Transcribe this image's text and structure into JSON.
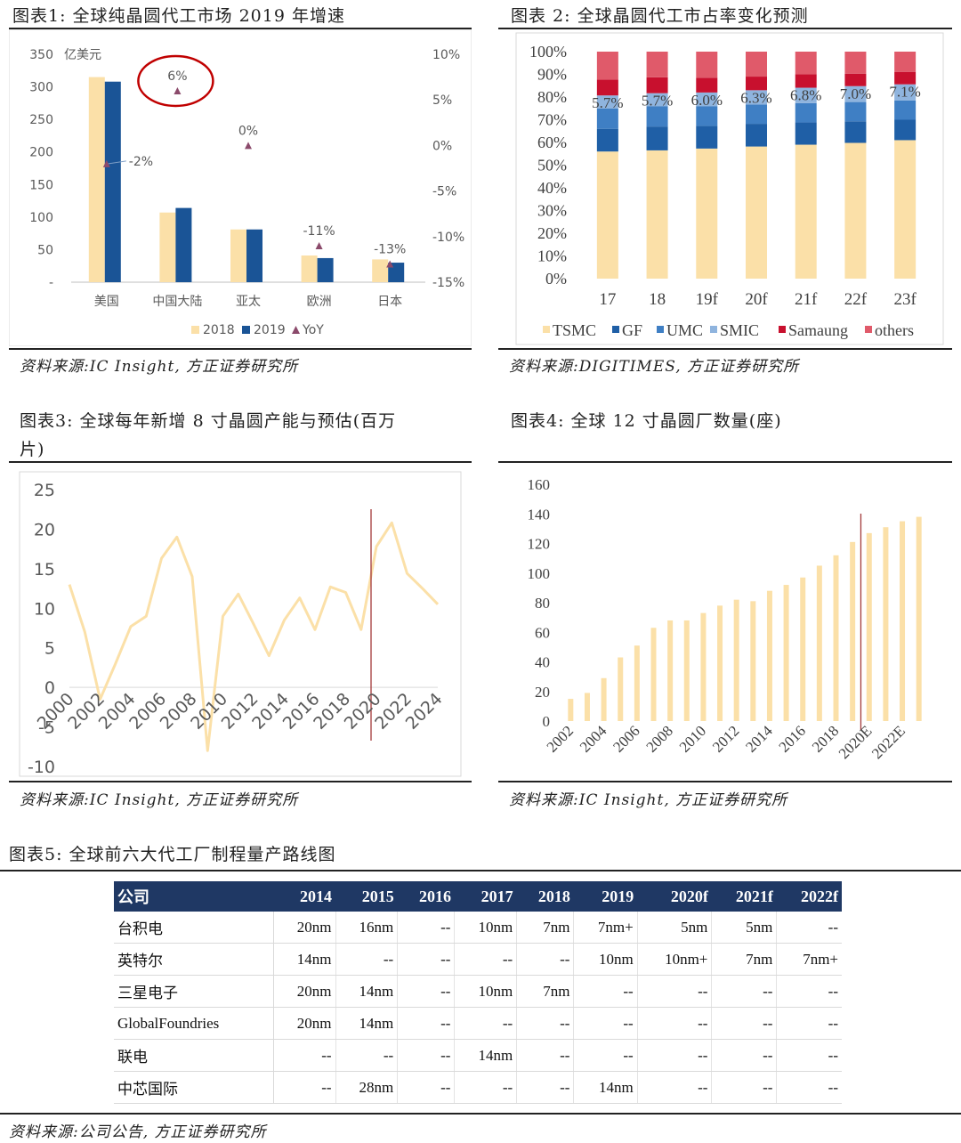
{
  "fig1": {
    "title": "图表1:  全球纯晶圆代工市场 2019 年增速",
    "source": "资料来源:IC Insight, 方正证券研究所",
    "unit_label": "亿美元",
    "chart_data": {
      "type": "bar",
      "categories": [
        "美国",
        "中国大陆",
        "亚太",
        "欧洲",
        "日本"
      ],
      "series": [
        {
          "name": "2018",
          "values": [
            315,
            107,
            81,
            41,
            35
          ],
          "color": "#fbe0a8"
        },
        {
          "name": "2019",
          "values": [
            308,
            114,
            81,
            37,
            30
          ],
          "color": "#1a5496"
        }
      ],
      "line_series": {
        "name": "YoY",
        "values": [
          -2,
          6,
          0,
          -11,
          -13
        ],
        "labels": [
          "-2%",
          "6%",
          "0%",
          "-11%",
          "-13%"
        ],
        "color": "#8b4a6b"
      },
      "ylim": [
        0,
        350
      ],
      "y_ticks": [
        "-",
        "50",
        "100",
        "150",
        "200",
        "250",
        "300",
        "350"
      ],
      "y2lim": [
        -15,
        10
      ],
      "y2_ticks": [
        "-15%",
        "-10%",
        "-5%",
        "0%",
        "5%",
        "10%"
      ],
      "highlight_color": "#c00000"
    }
  },
  "fig2": {
    "title": "图表 2:  全球晶圆代工市占率变化预测",
    "source": "资料来源:DIGITIMES, 方正证券研究所",
    "chart_data": {
      "type": "bar",
      "stacked": true,
      "categories": [
        "17",
        "18",
        "19f",
        "20f",
        "21f",
        "22f",
        "23f"
      ],
      "series": [
        {
          "name": "TSMC",
          "values": [
            56,
            56.5,
            57.3,
            58.2,
            59,
            59.8,
            61
          ],
          "color": "#fbe0a8"
        },
        {
          "name": "GF",
          "values": [
            10,
            10.5,
            10,
            10,
            9.8,
            9.5,
            9
          ],
          "color": "#1f5fa6"
        },
        {
          "name": "UMC",
          "values": [
            9,
            9,
            8.7,
            8.5,
            8.5,
            8.5,
            8.5
          ],
          "color": "#3f7fc4"
        },
        {
          "name": "SMIC",
          "values": [
            5.7,
            5.7,
            6.0,
            6.3,
            6.8,
            7.0,
            7.1
          ],
          "color": "#8fb4de"
        },
        {
          "name": "Samaung",
          "values": [
            7,
            7,
            6.5,
            6,
            6,
            5.5,
            5.5
          ],
          "color": "#c8102e"
        },
        {
          "name": "others",
          "values": [
            12.3,
            11.3,
            11.5,
            11,
            9.9,
            9.7,
            8.9
          ],
          "color": "#e05a6a"
        }
      ],
      "smic_labels": [
        "5.7%",
        "5.7%",
        "6.0%",
        "6.3%",
        "6.8%",
        "7.0%",
        "7.1%"
      ],
      "ylim": [
        0,
        100
      ],
      "y_ticks": [
        "0%",
        "10%",
        "20%",
        "30%",
        "40%",
        "50%",
        "60%",
        "70%",
        "80%",
        "90%",
        "100%"
      ]
    }
  },
  "fig3": {
    "title_line1": "图表3:  全球每年新增 8 寸晶圆产能与预估(百万",
    "title_line2": "片)",
    "source": "资料来源:IC Insight, 方正证券研究所",
    "chart_data": {
      "type": "line",
      "x": [
        2000,
        2001,
        2002,
        2003,
        2004,
        2005,
        2006,
        2007,
        2008,
        2009,
        2010,
        2011,
        2012,
        2013,
        2014,
        2015,
        2016,
        2017,
        2018,
        2019,
        2020,
        2021,
        2022,
        2023,
        2024
      ],
      "values": [
        13,
        7,
        -1.5,
        3,
        7.7,
        9,
        16.3,
        19,
        14,
        -8,
        9,
        11.8,
        8,
        4,
        8.5,
        11.3,
        7.3,
        12.7,
        12,
        7.3,
        17.8,
        20.8,
        14.4,
        12.5,
        10.5
      ],
      "x_tick_labels": [
        "2000",
        "2002",
        "2004",
        "2006",
        "2008",
        "2010",
        "2012",
        "2014",
        "2016",
        "2018",
        "2020",
        "2022",
        "2024"
      ],
      "y_ticks": [
        "-10",
        "-5",
        "0",
        "5",
        "10",
        "15",
        "20",
        "25"
      ],
      "ylim": [
        -10,
        25
      ],
      "marker_year": 2020,
      "line_color": "#fbe0a8",
      "marker_color": "#a33a3a"
    }
  },
  "fig4": {
    "title": "图表4:   全球 12 寸晶圆厂数量(座)",
    "source": "资料来源:IC Insight, 方正证券研究所",
    "chart_data": {
      "type": "bar",
      "categories": [
        "2002",
        "2003",
        "2004",
        "2005",
        "2006",
        "2007",
        "2008",
        "2009",
        "2010",
        "2011",
        "2012",
        "2013",
        "2014",
        "2015",
        "2016",
        "2017",
        "2018",
        "2019",
        "2020E",
        "2021E",
        "2022E",
        "2023E"
      ],
      "values": [
        15,
        19,
        29,
        43,
        51,
        63,
        68,
        68,
        73,
        78,
        82,
        81,
        88,
        92,
        97,
        105,
        112,
        121,
        127,
        131,
        135,
        138
      ],
      "x_tick_labels": [
        "2002",
        "2004",
        "2006",
        "2008",
        "2010",
        "2012",
        "2014",
        "2016",
        "2018",
        "2020E",
        "2022E"
      ],
      "y_ticks": [
        "0",
        "20",
        "40",
        "60",
        "80",
        "100",
        "120",
        "140",
        "160"
      ],
      "ylim": [
        0,
        160
      ],
      "marker_after": "2019",
      "bar_color": "#fbe0a8",
      "marker_color": "#a33a3a"
    }
  },
  "fig5": {
    "title": "图表5:   全球前六大代工厂制程量产路线图",
    "source": "资料来源:公司公告, 方正证券研究所",
    "chart_data": {
      "type": "table",
      "columns": [
        "公司",
        "2014",
        "2015",
        "2016",
        "2017",
        "2018",
        "2019",
        "2020f",
        "2021f",
        "2022f"
      ],
      "rows": [
        [
          "台积电",
          "20nm",
          "16nm",
          "--",
          "10nm",
          "7nm",
          "7nm+",
          "5nm",
          "5nm",
          "--"
        ],
        [
          "英特尔",
          "14nm",
          "--",
          "--",
          "--",
          "--",
          "10nm",
          "10nm+",
          "7nm",
          "7nm+"
        ],
        [
          "三星电子",
          "20nm",
          "14nm",
          "--",
          "10nm",
          "7nm",
          "--",
          "--",
          "--",
          "--"
        ],
        [
          "GlobalFoundries",
          "20nm",
          "14nm",
          "--",
          "--",
          "--",
          "--",
          "--",
          "--",
          "--"
        ],
        [
          "联电",
          "--",
          "--",
          "--",
          "14nm",
          "--",
          "--",
          "--",
          "--",
          "--"
        ],
        [
          "中芯国际",
          "--",
          "28nm",
          "--",
          "--",
          "--",
          "14nm",
          "--",
          "--",
          "--"
        ]
      ]
    }
  }
}
